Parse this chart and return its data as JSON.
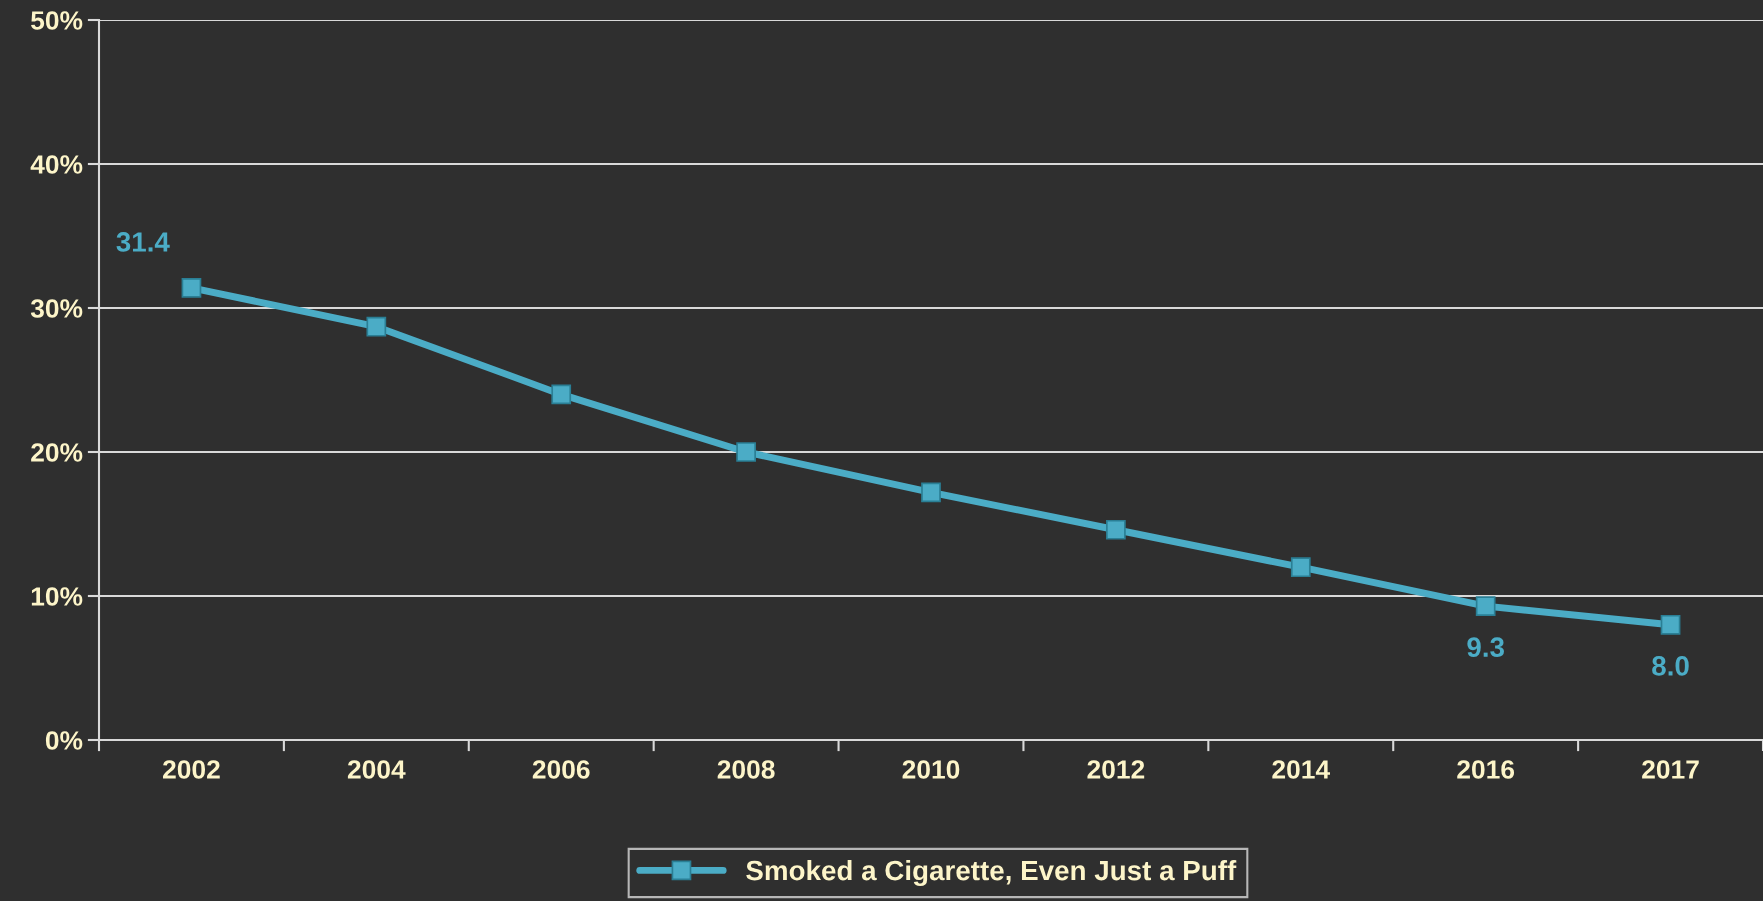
{
  "chart_data": {
    "type": "line",
    "categories": [
      "2002",
      "2004",
      "2006",
      "2008",
      "2010",
      "2012",
      "2014",
      "2016",
      "2017"
    ],
    "series": [
      {
        "name": "Smoked a Cigarette, Even Just a Puff",
        "color": "#4bacc6",
        "values": [
          31.4,
          28.7,
          24.0,
          20.0,
          17.2,
          14.6,
          12.0,
          9.3,
          8.0
        ],
        "value_labels": [
          "31.4",
          null,
          null,
          null,
          null,
          null,
          null,
          "9.3",
          "8.0"
        ]
      }
    ],
    "ylim": [
      0,
      50
    ],
    "yticks": [
      {
        "value": 0,
        "label": "0%"
      },
      {
        "value": 10,
        "label": "10%"
      },
      {
        "value": 20,
        "label": "20%"
      },
      {
        "value": 30,
        "label": "30%"
      },
      {
        "value": 40,
        "label": "40%"
      },
      {
        "value": 50,
        "label": "50%"
      }
    ],
    "grid": "y",
    "legend": "bottom",
    "marker": "square",
    "line_style": "solid"
  }
}
